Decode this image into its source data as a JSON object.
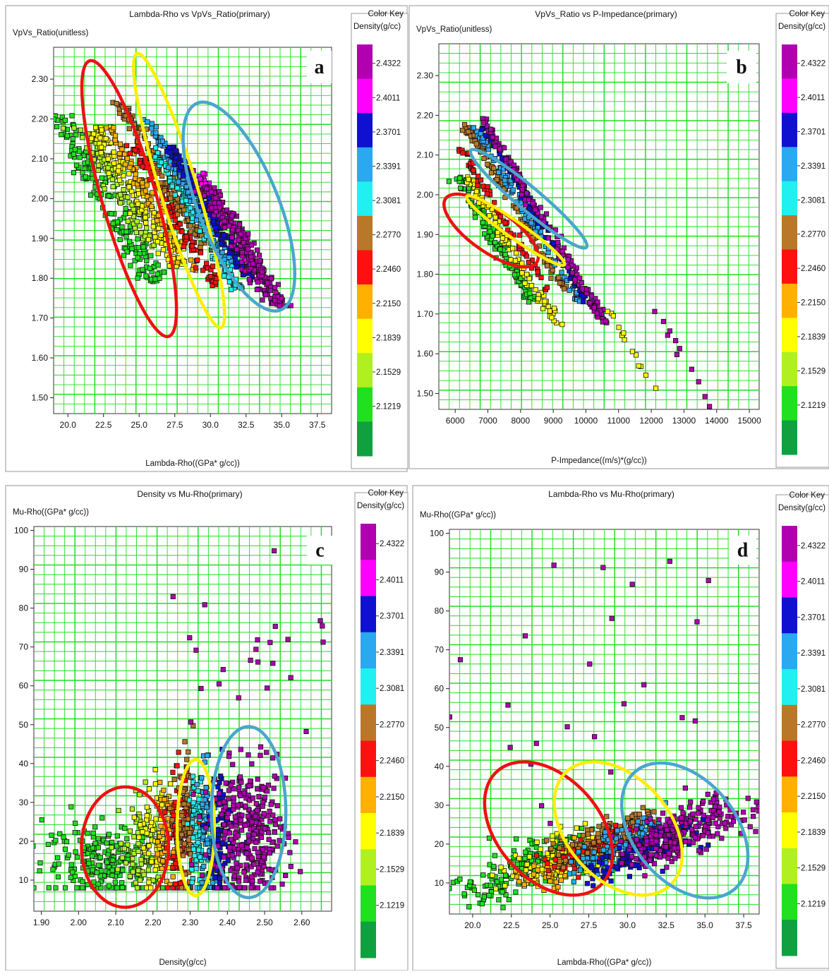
{
  "color_key": {
    "title": "Color Key",
    "subtitle": "Density(g/cc)",
    "entries": [
      {
        "label": "2.4322",
        "color": "#b000b0"
      },
      {
        "label": "2.4011",
        "color": "#ff00ff"
      },
      {
        "label": "2.3701",
        "color": "#1010d0"
      },
      {
        "label": "2.3391",
        "color": "#2aa8f0"
      },
      {
        "label": "2.3081",
        "color": "#20f0f0"
      },
      {
        "label": "2.2770",
        "color": "#b87828"
      },
      {
        "label": "2.2460",
        "color": "#ff1010"
      },
      {
        "label": "2.2150",
        "color": "#ffb000"
      },
      {
        "label": "2.1839",
        "color": "#ffff00"
      },
      {
        "label": "2.1529",
        "color": "#b0f020"
      },
      {
        "label": "2.1219",
        "color": "#20e020"
      },
      {
        "label": "",
        "color": "#10a040"
      }
    ]
  },
  "panels": [
    {
      "id": "a",
      "letter": "a",
      "title": "Lambda-Rho vs VpVs_Ratio(primary)",
      "ylabel": "VpVs_Ratio(unitless)",
      "xlabel": "Lambda-Rho((GPa* g/cc))",
      "xticks": [
        "20.0",
        "22.5",
        "25.0",
        "27.5",
        "30.0",
        "32.5",
        "35.0",
        "37.5"
      ],
      "yticks": [
        "1.50",
        "1.60",
        "1.70",
        "1.80",
        "1.90",
        "2.00",
        "2.10",
        "2.20",
        "2.30"
      ]
    },
    {
      "id": "b",
      "letter": "b",
      "title": "VpVs_Ratio vs P-Impedance(primary)",
      "ylabel": "VpVs_Ratio(unitless)",
      "xlabel": "P-Impedance((m/s)*(g/cc))",
      "xticks": [
        "6000",
        "7000",
        "8000",
        "9000",
        "10000",
        "11000",
        "12000",
        "13000",
        "14000",
        "15000"
      ],
      "yticks": [
        "1.50",
        "1.60",
        "1.70",
        "1.80",
        "1.90",
        "2.00",
        "2.10",
        "2.20",
        "2.30"
      ]
    },
    {
      "id": "c",
      "letter": "c",
      "title": "Density vs Mu-Rho(primary)",
      "ylabel": "Mu-Rho((GPa* g/cc))",
      "xlabel": "Density(g/cc)",
      "xticks": [
        "1.90",
        "2.00",
        "2.10",
        "2.20",
        "2.30",
        "2.40",
        "2.50",
        "2.60"
      ],
      "yticks": [
        "10",
        "20",
        "30",
        "40",
        "50",
        "60",
        "70",
        "80",
        "90",
        "100"
      ]
    },
    {
      "id": "d",
      "letter": "d",
      "title": "Lambda-Rho vs Mu-Rho(primary)",
      "ylabel": "Mu-Rho((GPa* g/cc))",
      "xlabel": "Lambda-Rho((GPa* g/cc))",
      "xticks": [
        "20.0",
        "22.5",
        "25.0",
        "27.5",
        "30.0",
        "32.5",
        "35.0",
        "37.5"
      ],
      "yticks": [
        "10",
        "20",
        "30",
        "40",
        "50",
        "60",
        "70",
        "80",
        "90",
        "100"
      ]
    }
  ],
  "chart_data": [
    {
      "type": "scatter",
      "panel": "a",
      "title": "Lambda-Rho vs VpVs_Ratio(primary)",
      "xlabel": "Lambda-Rho((GPa* g/cc))",
      "ylabel": "VpVs_Ratio(unitless)",
      "xlim": [
        19,
        38.5
      ],
      "ylim": [
        1.46,
        2.38
      ],
      "grid": true,
      "legend": "right",
      "color_by": "Density(g/cc)",
      "clusters": [
        {
          "density": 2.1219,
          "x0": 22.7,
          "y0": 2.0,
          "along": [
            -3.5,
            3.5
          ],
          "spread": 1.0,
          "n": 170
        },
        {
          "density": 2.1529,
          "x0": 23.5,
          "y0": 2.03,
          "along": [
            -2.5,
            2.5
          ],
          "spread": 0.8,
          "n": 90
        },
        {
          "density": 2.1839,
          "x0": 24.9,
          "y0": 2.0,
          "along": [
            -3,
            3
          ],
          "spread": 0.8,
          "n": 150
        },
        {
          "density": 2.215,
          "x0": 25.8,
          "y0": 2.0,
          "along": [
            -3,
            3
          ],
          "spread": 0.6,
          "n": 90
        },
        {
          "density": 2.246,
          "x0": 27.4,
          "y0": 1.96,
          "along": [
            -3,
            3
          ],
          "spread": 0.5,
          "n": 110
        },
        {
          "density": 2.277,
          "x0": 26.8,
          "y0": 2.05,
          "along": [
            -3.2,
            3
          ],
          "spread": 0.5,
          "n": 130
        },
        {
          "density": 2.3081,
          "x0": 29.0,
          "y0": 1.95,
          "along": [
            -3,
            3
          ],
          "spread": 0.5,
          "n": 120
        },
        {
          "density": 2.3391,
          "x0": 28.5,
          "y0": 2.02,
          "along": [
            -3,
            3
          ],
          "spread": 0.5,
          "n": 120
        },
        {
          "density": 2.3701,
          "x0": 30.2,
          "y0": 1.95,
          "along": [
            -3,
            2.6
          ],
          "spread": 0.5,
          "n": 150
        },
        {
          "density": 2.4011,
          "x0": 31.2,
          "y0": 1.94,
          "along": [
            -2.4,
            2.4
          ],
          "spread": 0.5,
          "n": 70
        },
        {
          "density": 2.4322,
          "x0": 32.3,
          "y0": 1.88,
          "along": [
            -2.5,
            2.5
          ],
          "spread": 0.8,
          "n": 230
        }
      ],
      "slope": -0.06,
      "ellipses": [
        {
          "color": "red",
          "cx": 24.3,
          "cy": 2.0,
          "rx": 1.9,
          "ry": 0.36,
          "rot": -16
        },
        {
          "color": "yellow",
          "cx": 27.8,
          "cy": 2.02,
          "rx": 1.3,
          "ry": 0.36,
          "rot": -17
        },
        {
          "color": "blue",
          "cx": 32.0,
          "cy": 1.98,
          "rx": 2.8,
          "ry": 0.28,
          "rot": -22
        }
      ]
    },
    {
      "type": "scatter",
      "panel": "b",
      "title": "VpVs_Ratio vs P-Impedance(primary)",
      "xlabel": "P-Impedance((m/s)*(g/cc))",
      "ylabel": "VpVs_Ratio(unitless)",
      "xlim": [
        5500,
        15300
      ],
      "ylim": [
        1.46,
        2.38
      ],
      "grid": true,
      "legend": "right",
      "color_by": "Density(g/cc)",
      "clusters": [
        {
          "density": 2.1219,
          "x0": 7000,
          "y0": 1.92,
          "along": [
            -900,
            1400
          ],
          "spread": 220,
          "n": 120
        },
        {
          "density": 2.1839,
          "x0": 7600,
          "y0": 1.88,
          "along": [
            -1200,
            1500
          ],
          "spread": 180,
          "n": 100
        },
        {
          "density": 2.246,
          "x0": 7400,
          "y0": 1.95,
          "along": [
            -1200,
            1400
          ],
          "spread": 150,
          "n": 60
        },
        {
          "density": 2.277,
          "x0": 7800,
          "y0": 1.97,
          "along": [
            -1500,
            1500
          ],
          "spread": 150,
          "n": 100
        },
        {
          "density": 2.3391,
          "x0": 8200,
          "y0": 1.95,
          "along": [
            -1600,
            1600
          ],
          "spread": 140,
          "n": 90
        },
        {
          "density": 2.3701,
          "x0": 8600,
          "y0": 1.93,
          "along": [
            -1800,
            1600
          ],
          "spread": 140,
          "n": 80
        },
        {
          "density": 2.4322,
          "x0": 8800,
          "y0": 1.92,
          "along": [
            -2000,
            1800
          ],
          "spread": 170,
          "n": 150
        },
        {
          "density": 2.4322,
          "x0": 13200,
          "y0": 1.56,
          "along": [
            -1300,
            1400
          ],
          "spread": 200,
          "n": 14
        },
        {
          "density": 2.1839,
          "x0": 11300,
          "y0": 1.62,
          "along": [
            -800,
            800
          ],
          "spread": 160,
          "n": 14
        }
      ],
      "slope": -0.000138,
      "ellipses": [
        {
          "color": "red",
          "cx": 7100,
          "cy": 1.91,
          "rx": 0.28,
          "ry": 0.13,
          "rot": -55,
          "px": true
        },
        {
          "color": "yellow",
          "cx": 7850,
          "cy": 1.91,
          "rx": 0.3,
          "ry": 0.05,
          "rot": -55,
          "px": true
        },
        {
          "color": "blue",
          "cx": 8250,
          "cy": 1.99,
          "rx": 0.38,
          "ry": 0.07,
          "rot": -50,
          "px": true
        }
      ]
    },
    {
      "type": "scatter",
      "panel": "c",
      "title": "Density vs Mu-Rho(primary)",
      "xlabel": "Density(g/cc)",
      "ylabel": "Mu-Rho((GPa* g/cc))",
      "xlim": [
        1.88,
        2.68
      ],
      "ylim": [
        2,
        101
      ],
      "grid": true,
      "legend": "right",
      "color_by": "Density(g/cc)",
      "clusters": [
        {
          "density": 2.1219,
          "x0": 2.07,
          "y0": 15,
          "dx": 0.08,
          "dy": 7,
          "n": 220
        },
        {
          "density": 2.1529,
          "x0": 2.17,
          "y0": 18,
          "dx": 0.03,
          "dy": 9,
          "n": 70
        },
        {
          "density": 2.1839,
          "x0": 2.21,
          "y0": 20,
          "dx": 0.02,
          "dy": 10,
          "n": 80
        },
        {
          "density": 2.215,
          "x0": 2.235,
          "y0": 22,
          "dx": 0.015,
          "dy": 10,
          "n": 50
        },
        {
          "density": 2.246,
          "x0": 2.27,
          "y0": 22,
          "dx": 0.015,
          "dy": 12,
          "n": 90
        },
        {
          "density": 2.277,
          "x0": 2.29,
          "y0": 22,
          "dx": 0.015,
          "dy": 12,
          "n": 90
        },
        {
          "density": 2.3081,
          "x0": 2.32,
          "y0": 22,
          "dx": 0.012,
          "dy": 12,
          "n": 80
        },
        {
          "density": 2.3391,
          "x0": 2.345,
          "y0": 22,
          "dx": 0.012,
          "dy": 12,
          "n": 80
        },
        {
          "density": 2.3701,
          "x0": 2.38,
          "y0": 22,
          "dx": 0.015,
          "dy": 12,
          "n": 100
        },
        {
          "density": 2.4322,
          "x0": 2.46,
          "y0": 22,
          "dx": 0.05,
          "dy": 12,
          "n": 330
        },
        {
          "density": 2.4322,
          "x0": 2.45,
          "y0": 68,
          "dx": 0.12,
          "dy": 24,
          "n": 30
        }
      ],
      "ellipses": [
        {
          "color": "red",
          "cx": 2.125,
          "cy": 18.5,
          "rx": 0.117,
          "ry": 15.5,
          "rot": 0
        },
        {
          "color": "yellow",
          "cx": 2.315,
          "cy": 23.5,
          "rx": 0.05,
          "ry": 17.5,
          "rot": 0
        },
        {
          "color": "blue",
          "cx": 2.457,
          "cy": 27.5,
          "rx": 0.1,
          "ry": 22,
          "rot": 0
        }
      ]
    },
    {
      "type": "scatter",
      "panel": "d",
      "title": "Lambda-Rho vs Mu-Rho(primary)",
      "xlabel": "Lambda-Rho((GPa* g/cc))",
      "ylabel": "Mu-Rho((GPa* g/cc))",
      "xlim": [
        18.5,
        38.5
      ],
      "ylim": [
        2,
        101
      ],
      "grid": true,
      "legend": "right",
      "color_by": "Density(g/cc)",
      "clusters": [
        {
          "density": 2.1219,
          "x0": 23.5,
          "y0": 14,
          "along": [
            -3.5,
            3
          ],
          "spread": 2.0,
          "n": 180
        },
        {
          "density": 2.1839,
          "x0": 25.5,
          "y0": 16,
          "along": [
            -2.5,
            2.5
          ],
          "spread": 2.0,
          "n": 110
        },
        {
          "density": 2.215,
          "x0": 26.5,
          "y0": 15,
          "along": [
            -2.5,
            2.5
          ],
          "spread": 1.5,
          "n": 70
        },
        {
          "density": 2.246,
          "x0": 28.2,
          "y0": 19,
          "along": [
            -2.5,
            2.5
          ],
          "spread": 1.5,
          "n": 90
        },
        {
          "density": 2.277,
          "x0": 28.6,
          "y0": 22,
          "along": [
            -2.5,
            2.5
          ],
          "spread": 1.8,
          "n": 110
        },
        {
          "density": 2.3391,
          "x0": 29.8,
          "y0": 20,
          "along": [
            -3,
            3
          ],
          "spread": 1.6,
          "n": 120
        },
        {
          "density": 2.3701,
          "x0": 31.2,
          "y0": 18,
          "along": [
            -3,
            3
          ],
          "spread": 1.6,
          "n": 130
        },
        {
          "density": 2.4322,
          "x0": 33.4,
          "y0": 23,
          "along": [
            -3,
            3
          ],
          "spread": 2.2,
          "n": 250
        },
        {
          "density": 2.4322,
          "x0": 29.5,
          "y0": 62,
          "along": [
            -6,
            6
          ],
          "spread": 12,
          "n": 32
        }
      ],
      "slope": 2.0,
      "ellipses": [
        {
          "color": "red",
          "cx": 24.9,
          "cy": 24,
          "rx": 1.5,
          "ry": 18,
          "rot": -42,
          "px2": true
        },
        {
          "color": "yellow",
          "cx": 29.4,
          "cy": 24,
          "rx": 1.5,
          "ry": 18,
          "rot": -42,
          "px2": true
        },
        {
          "color": "blue",
          "cx": 33.7,
          "cy": 23.5,
          "rx": 1.5,
          "ry": 18,
          "rot": -40,
          "px2": true
        }
      ]
    }
  ]
}
